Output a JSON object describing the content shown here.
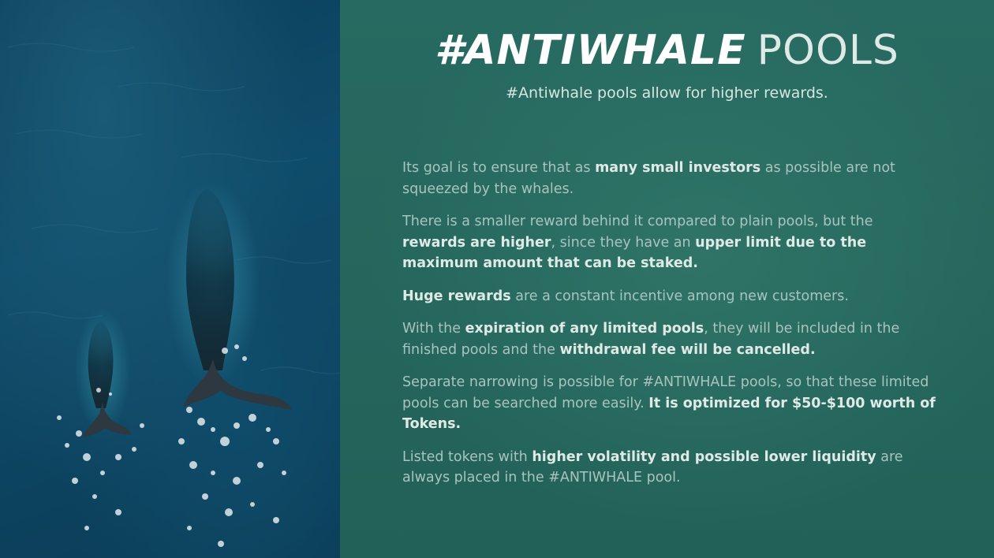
{
  "title": {
    "bold": "#ANTIWHALE",
    "light": "POOLS"
  },
  "subtitle": "#Antiwhale pools allow for higher rewards.",
  "paragraphs": [
    {
      "parts": [
        {
          "text": "Its goal is to ensure that as ",
          "bold": false
        },
        {
          "text": "many small investors",
          "bold": true
        },
        {
          "text": " as possible are not squeezed by the whales.",
          "bold": false
        }
      ]
    },
    {
      "parts": [
        {
          "text": "There is a smaller reward behind it compared to plain pools, but the ",
          "bold": false
        },
        {
          "text": "rewards are higher",
          "bold": true
        },
        {
          "text": ", since they have an ",
          "bold": false
        },
        {
          "text": "upper limit due to the maximum amount that can be staked.",
          "bold": true
        }
      ]
    },
    {
      "parts": [
        {
          "text": "Huge rewards",
          "bold": true
        },
        {
          "text": " are a constant incentive among new customers.",
          "bold": false
        }
      ]
    },
    {
      "parts": [
        {
          "text": "With the ",
          "bold": false
        },
        {
          "text": "expiration of any limited pools",
          "bold": true
        },
        {
          "text": ", they will be included in the finished pools and the ",
          "bold": false
        },
        {
          "text": "withdrawal fee will be cancelled.",
          "bold": true
        }
      ]
    },
    {
      "parts": [
        {
          "text": "Separate narrowing is possible for #ANTIWHALE pools, so that these limited pools can be searched more easily. ",
          "bold": false
        },
        {
          "text": "It is optimized for $50-$100 worth of Tokens.",
          "bold": true
        }
      ]
    },
    {
      "parts": [
        {
          "text": "Listed tokens with ",
          "bold": false
        },
        {
          "text": "higher volatility and possible lower liquidity",
          "bold": true
        },
        {
          "text": " are always placed in the #ANTIWHALE pool.",
          "bold": false
        }
      ]
    }
  ],
  "colors": {
    "panel_bg": "#276a61",
    "ocean": "#0e4c6b",
    "emphasis_text": "#dfeae7",
    "body_text": "#a9c4be"
  }
}
